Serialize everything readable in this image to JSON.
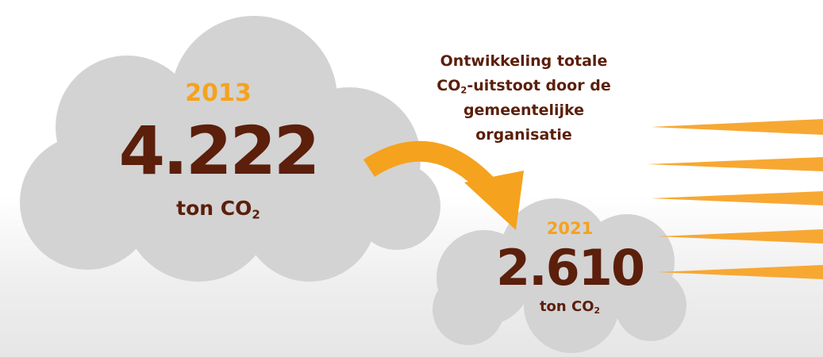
{
  "title": {
    "before": "Ontwikkeling totale CO",
    "sub": "2",
    "after": "-uitstoot door de gemeentelijke organisatie"
  },
  "clouds": [
    {
      "year": "2013",
      "value": "4.222",
      "unit": {
        "text": "ton CO",
        "sub": "2"
      }
    },
    {
      "year": "2021",
      "value": "2.610",
      "unit": {
        "text": "ton CO",
        "sub": "2"
      }
    }
  ]
}
